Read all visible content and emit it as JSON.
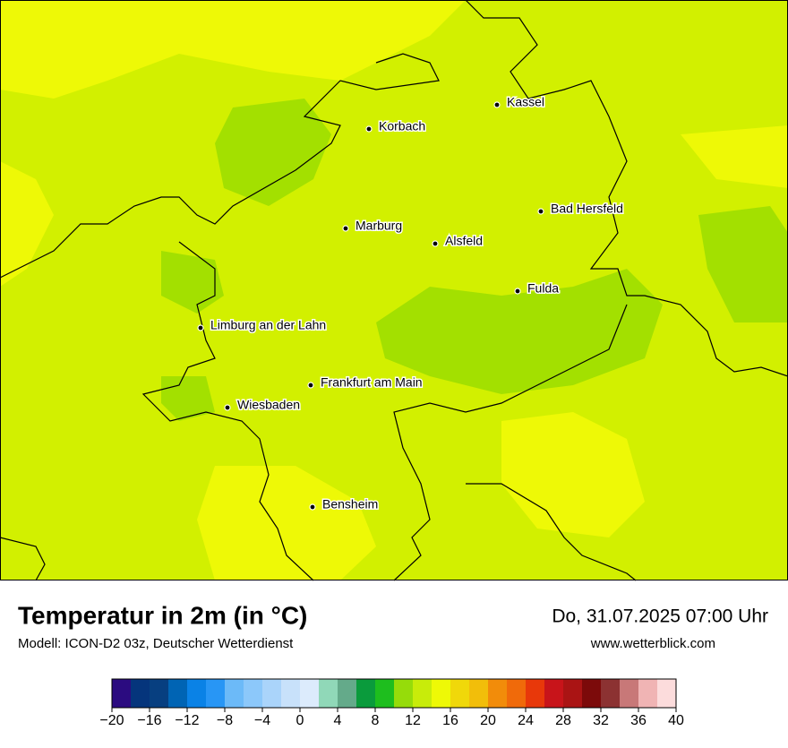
{
  "title": "Temperatur in 2m (in °C)",
  "subtitle": "Modell: ICON-D2 03z, Deutscher Wetterdienst",
  "datetime": "Do, 31.07.2025 07:00 Uhr",
  "website": "www.wetterblick.com",
  "cities": [
    "Kassel",
    "Korbach",
    "Bad Hersfeld",
    "Marburg",
    "Alsfeld",
    "Fulda",
    "Limburg an der Lahn",
    "Frankfurt am Main",
    "Wiesbaden",
    "Bensheim"
  ],
  "colorbar": {
    "lim": [
      -20,
      40
    ],
    "colors": [
      "#2b0b80",
      "#05357c",
      "#073f80",
      "#0064b4",
      "#0a82e6",
      "#2896f5",
      "#6cbaf8",
      "#8cc8fa",
      "#aad4fa",
      "#c8e1fa",
      "#dcebfc",
      "#90d8b8",
      "#64aa8a",
      "#0a9b3c",
      "#1ebe1e",
      "#96dc0a",
      "#c8ec0a",
      "#eef906",
      "#f0d80a",
      "#f2be0a",
      "#f28c0a",
      "#f06a0a",
      "#e8380a",
      "#c8141a",
      "#aa1414",
      "#7c0a0a",
      "#8c3232",
      "#c87878",
      "#f0b4b4",
      "#fcdcdc"
    ],
    "ticks": [
      {
        "value": -20,
        "label": "−20"
      },
      {
        "value": -16,
        "label": "−16"
      },
      {
        "value": -12,
        "label": "−12"
      },
      {
        "value": -8,
        "label": "−8"
      },
      {
        "value": -4,
        "label": "−4"
      },
      0,
      4,
      8,
      12,
      16,
      20,
      24,
      28,
      32,
      36,
      40
    ]
  }
}
